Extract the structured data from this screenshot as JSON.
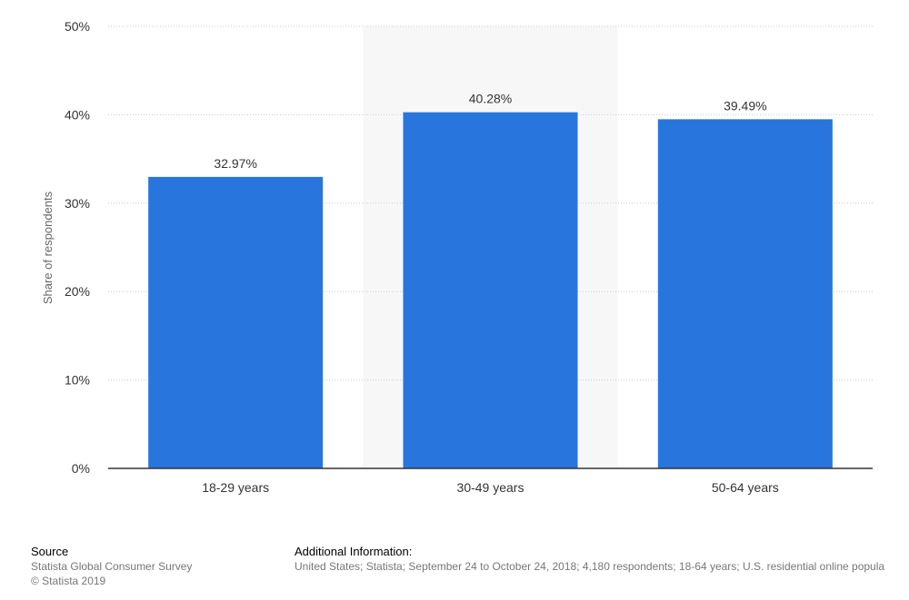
{
  "chart_data": {
    "type": "bar",
    "categories": [
      "18-29 years",
      "30-49 years",
      "50-64 years"
    ],
    "values": [
      32.97,
      40.28,
      39.49
    ],
    "data_labels": [
      "32.97%",
      "40.28%",
      "39.49%"
    ],
    "ylabel": "Share of respondents",
    "ylim": [
      0,
      50
    ],
    "yticks": [
      "0%",
      "10%",
      "20%",
      "30%",
      "40%",
      "50%"
    ],
    "grid": true,
    "highlighted_category": "30-49 years",
    "colors": {
      "bar": "#2876dd",
      "highlight_band": "#f7f7f7",
      "grid": "#cccccc",
      "axis": "#333333"
    }
  },
  "footer": {
    "source_heading": "Source",
    "source_line1": "Statista Global Consumer Survey",
    "source_line2": "© Statista 2019",
    "info_heading": "Additional Information:",
    "info_text": "United States; Statista; September 24 to October 24, 2018; 4,180 respondents; 18-64 years; U.S. residential online popula"
  }
}
